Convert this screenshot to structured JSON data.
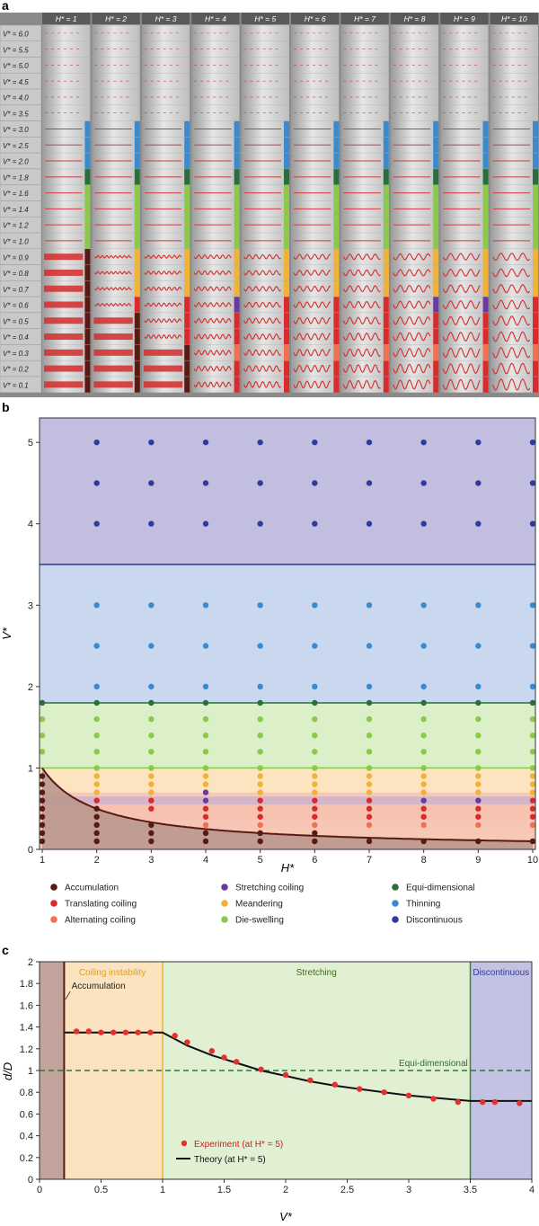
{
  "panel_labels": {
    "a": "a",
    "b": "b",
    "c": "c"
  },
  "colors": {
    "accumulation": "#5a1a14",
    "translating_coiling": "#d92b2b",
    "alternating_coiling": "#f07050",
    "stretching_coiling": "#6a3aa0",
    "meandering": "#f2b233",
    "die_swelling": "#8cc84b",
    "equi_dimensional": "#2a6e3c",
    "thinning": "#3a8ad0",
    "discontinuous": "#2f3a9a"
  },
  "panel_a": {
    "column_headers": [
      "H* = 1",
      "H* = 2",
      "H* = 3",
      "H* = 4",
      "H* = 5",
      "H* = 6",
      "H* = 7",
      "H* = 8",
      "H* = 9",
      "H* = 10"
    ],
    "row_labels": [
      "V* = 6.0",
      "V* = 5.5",
      "V* = 5.0",
      "V* = 4.5",
      "V* = 4.0",
      "V* = 3.5",
      "V* = 3.0",
      "V* = 2.5",
      "V* = 2.0",
      "V* = 1.8",
      "V* = 1.6",
      "V* = 1.4",
      "V* = 1.2",
      "V* = 1.0",
      "V* = 0.9",
      "V* = 0.8",
      "V* = 0.7",
      "V* = 0.6",
      "V* = 0.5",
      "V* = 0.4",
      "V* = 0.3",
      "V* = 0.2",
      "V* = 0.1"
    ]
  },
  "chart_data": [
    {
      "type": "scatter",
      "panel": "b",
      "xlabel": "H*",
      "ylabel": "V*",
      "xlim": [
        1,
        10
      ],
      "ylim": [
        0,
        5.3
      ],
      "x_ticks": [
        "1",
        "2",
        "3",
        "4",
        "5",
        "6",
        "7",
        "8",
        "9",
        "10"
      ],
      "y_ticks": [
        "0",
        "1",
        "2",
        "3",
        "4",
        "5"
      ],
      "regions": [
        {
          "regime": "Discontinuous",
          "from": 3.5,
          "to": 5.3
        },
        {
          "regime": "Thinning",
          "from": 1.8,
          "to": 3.5
        },
        {
          "regime": "Die-swelling",
          "from": 1.0,
          "to": 1.8
        },
        {
          "regime": "Meandering",
          "from": 0.7,
          "to": 1.0
        },
        {
          "regime": "Stretching coiling",
          "from": 0.55,
          "to": 0.65
        },
        {
          "regime": "Translating coiling",
          "from": 0.35,
          "to": 0.55
        },
        {
          "regime": "Alternating coiling",
          "from": 0.25,
          "to": 0.35
        }
      ],
      "boundary_curve": {
        "name": "Accumulation boundary",
        "formula": "V* = 1/H*"
      },
      "series": [
        {
          "name": "Discontinuous",
          "points": [
            [
              2,
              5
            ],
            [
              3,
              5
            ],
            [
              4,
              5
            ],
            [
              5,
              5
            ],
            [
              6,
              5
            ],
            [
              7,
              5
            ],
            [
              8,
              5
            ],
            [
              9,
              5
            ],
            [
              10,
              5
            ],
            [
              2,
              4.5
            ],
            [
              3,
              4.5
            ],
            [
              4,
              4.5
            ],
            [
              5,
              4.5
            ],
            [
              6,
              4.5
            ],
            [
              7,
              4.5
            ],
            [
              8,
              4.5
            ],
            [
              9,
              4.5
            ],
            [
              10,
              4.5
            ],
            [
              2,
              4
            ],
            [
              3,
              4
            ],
            [
              4,
              4
            ],
            [
              5,
              4
            ],
            [
              6,
              4
            ],
            [
              7,
              4
            ],
            [
              8,
              4
            ],
            [
              9,
              4
            ],
            [
              10,
              4
            ]
          ]
        },
        {
          "name": "Thinning",
          "points": [
            [
              2,
              3
            ],
            [
              3,
              3
            ],
            [
              4,
              3
            ],
            [
              5,
              3
            ],
            [
              6,
              3
            ],
            [
              7,
              3
            ],
            [
              8,
              3
            ],
            [
              9,
              3
            ],
            [
              10,
              3
            ],
            [
              2,
              2.5
            ],
            [
              3,
              2.5
            ],
            [
              4,
              2.5
            ],
            [
              5,
              2.5
            ],
            [
              6,
              2.5
            ],
            [
              7,
              2.5
            ],
            [
              8,
              2.5
            ],
            [
              9,
              2.5
            ],
            [
              10,
              2.5
            ],
            [
              2,
              2
            ],
            [
              3,
              2
            ],
            [
              4,
              2
            ],
            [
              5,
              2
            ],
            [
              6,
              2
            ],
            [
              7,
              2
            ],
            [
              8,
              2
            ],
            [
              9,
              2
            ],
            [
              10,
              2
            ]
          ]
        },
        {
          "name": "Equi-dimensional",
          "points": [
            [
              1,
              1.8
            ],
            [
              2,
              1.8
            ],
            [
              3,
              1.8
            ],
            [
              4,
              1.8
            ],
            [
              5,
              1.8
            ],
            [
              6,
              1.8
            ],
            [
              7,
              1.8
            ],
            [
              8,
              1.8
            ],
            [
              9,
              1.8
            ],
            [
              10,
              1.8
            ]
          ]
        },
        {
          "name": "Die-swelling",
          "points": [
            [
              1,
              1.6
            ],
            [
              2,
              1.6
            ],
            [
              3,
              1.6
            ],
            [
              4,
              1.6
            ],
            [
              5,
              1.6
            ],
            [
              6,
              1.6
            ],
            [
              7,
              1.6
            ],
            [
              8,
              1.6
            ],
            [
              9,
              1.6
            ],
            [
              10,
              1.6
            ],
            [
              1,
              1.4
            ],
            [
              2,
              1.4
            ],
            [
              3,
              1.4
            ],
            [
              4,
              1.4
            ],
            [
              5,
              1.4
            ],
            [
              6,
              1.4
            ],
            [
              7,
              1.4
            ],
            [
              8,
              1.4
            ],
            [
              9,
              1.4
            ],
            [
              10,
              1.4
            ],
            [
              1,
              1.2
            ],
            [
              2,
              1.2
            ],
            [
              3,
              1.2
            ],
            [
              4,
              1.2
            ],
            [
              5,
              1.2
            ],
            [
              6,
              1.2
            ],
            [
              7,
              1.2
            ],
            [
              8,
              1.2
            ],
            [
              9,
              1.2
            ],
            [
              10,
              1.2
            ],
            [
              2,
              1
            ],
            [
              3,
              1
            ],
            [
              4,
              1
            ],
            [
              5,
              1
            ],
            [
              6,
              1
            ],
            [
              7,
              1
            ],
            [
              8,
              1
            ],
            [
              9,
              1
            ],
            [
              10,
              1
            ]
          ]
        },
        {
          "name": "Meandering",
          "points": [
            [
              2,
              0.9
            ],
            [
              3,
              0.9
            ],
            [
              4,
              0.9
            ],
            [
              5,
              0.9
            ],
            [
              6,
              0.9
            ],
            [
              7,
              0.9
            ],
            [
              8,
              0.9
            ],
            [
              9,
              0.9
            ],
            [
              10,
              0.9
            ],
            [
              2,
              0.8
            ],
            [
              3,
              0.8
            ],
            [
              4,
              0.8
            ],
            [
              5,
              0.8
            ],
            [
              6,
              0.8
            ],
            [
              7,
              0.8
            ],
            [
              8,
              0.8
            ],
            [
              9,
              0.8
            ],
            [
              10,
              0.8
            ],
            [
              2,
              0.7
            ],
            [
              3,
              0.7
            ],
            [
              5,
              0.7
            ],
            [
              6,
              0.7
            ],
            [
              7,
              0.7
            ],
            [
              8,
              0.7
            ],
            [
              9,
              0.7
            ],
            [
              10,
              0.7
            ]
          ]
        },
        {
          "name": "Stretching coiling",
          "points": [
            [
              4,
              0.7
            ],
            [
              4,
              0.6
            ],
            [
              8,
              0.6
            ],
            [
              9,
              0.6
            ]
          ]
        },
        {
          "name": "Translating coiling",
          "points": [
            [
              2,
              0.6
            ],
            [
              3,
              0.6
            ],
            [
              5,
              0.6
            ],
            [
              6,
              0.6
            ],
            [
              7,
              0.6
            ],
            [
              10,
              0.6
            ],
            [
              3,
              0.5
            ],
            [
              4,
              0.5
            ],
            [
              5,
              0.5
            ],
            [
              6,
              0.5
            ],
            [
              7,
              0.5
            ],
            [
              8,
              0.5
            ],
            [
              9,
              0.5
            ],
            [
              10,
              0.5
            ],
            [
              4,
              0.4
            ],
            [
              5,
              0.4
            ],
            [
              6,
              0.4
            ],
            [
              7,
              0.4
            ],
            [
              8,
              0.4
            ],
            [
              9,
              0.4
            ],
            [
              10,
              0.4
            ]
          ]
        },
        {
          "name": "Alternating coiling",
          "points": [
            [
              4,
              0.3
            ],
            [
              5,
              0.3
            ],
            [
              6,
              0.3
            ],
            [
              7,
              0.3
            ],
            [
              8,
              0.3
            ],
            [
              9,
              0.3
            ],
            [
              10,
              0.3
            ]
          ]
        },
        {
          "name": "Accumulation",
          "points": [
            [
              1,
              0.9
            ],
            [
              1,
              0.8
            ],
            [
              1,
              0.7
            ],
            [
              1,
              0.6
            ],
            [
              1,
              0.5
            ],
            [
              1,
              0.4
            ],
            [
              1,
              0.3
            ],
            [
              1,
              0.2
            ],
            [
              1,
              0.1
            ],
            [
              2,
              0.5
            ],
            [
              2,
              0.4
            ],
            [
              2,
              0.3
            ],
            [
              2,
              0.2
            ],
            [
              2,
              0.1
            ],
            [
              3,
              0.3
            ],
            [
              3,
              0.2
            ],
            [
              3,
              0.1
            ],
            [
              4,
              0.2
            ],
            [
              4,
              0.1
            ],
            [
              5,
              0.2
            ],
            [
              5,
              0.1
            ],
            [
              6,
              0.2
            ],
            [
              6,
              0.1
            ],
            [
              7,
              0.1
            ],
            [
              8,
              0.1
            ],
            [
              9,
              0.1
            ],
            [
              10,
              0.1
            ]
          ]
        }
      ],
      "legend": [
        "Accumulation",
        "Stretching coiling",
        "Equi-dimensional",
        "Translating coiling",
        "Meandering",
        "Thinning",
        "Alternating coiling",
        "Die-swelling",
        "Discontinuous"
      ]
    },
    {
      "type": "line",
      "panel": "c",
      "xlabel": "V*",
      "ylabel": "d/D",
      "xlim": [
        0,
        4
      ],
      "ylim": [
        0,
        2
      ],
      "x_ticks": [
        "0",
        "0.5",
        "1",
        "1.5",
        "2",
        "2.5",
        "3",
        "3.5",
        "4"
      ],
      "y_ticks": [
        "0",
        "0.2",
        "0.4",
        "0.6",
        "0.8",
        "1",
        "1.2",
        "1.4",
        "1.6",
        "1.8",
        "2"
      ],
      "regions": [
        {
          "label": "Accumulation",
          "from": 0,
          "to": 0.2
        },
        {
          "label": "Coiling instability",
          "from": 0.2,
          "to": 1.0
        },
        {
          "label": "Stretching",
          "from": 1.0,
          "to": 3.5
        },
        {
          "label": "Discontinuous",
          "from": 3.5,
          "to": 4.0
        }
      ],
      "reference_line": {
        "label": "Equi-dimensional",
        "y": 1.0
      },
      "series": [
        {
          "name": "Experiment (at H* = 5)",
          "x": [
            0.3,
            0.4,
            0.5,
            0.6,
            0.7,
            0.8,
            0.9,
            1.1,
            1.2,
            1.4,
            1.5,
            1.6,
            1.8,
            2.0,
            2.2,
            2.4,
            2.6,
            2.8,
            3.0,
            3.2,
            3.4,
            3.6,
            3.7,
            3.9
          ],
          "y": [
            1.36,
            1.36,
            1.35,
            1.35,
            1.35,
            1.35,
            1.35,
            1.32,
            1.26,
            1.18,
            1.12,
            1.08,
            1.01,
            0.96,
            0.91,
            0.87,
            0.83,
            0.8,
            0.77,
            0.74,
            0.71,
            0.71,
            0.71,
            0.7
          ]
        },
        {
          "name": "Theory (at H* = 5)",
          "x": [
            0.2,
            1.0,
            1.2,
            1.4,
            1.6,
            1.8,
            2.0,
            2.2,
            2.4,
            2.6,
            2.8,
            3.0,
            3.2,
            3.5,
            4.0
          ],
          "y": [
            1.35,
            1.35,
            1.23,
            1.14,
            1.07,
            1.0,
            0.95,
            0.9,
            0.86,
            0.83,
            0.8,
            0.77,
            0.75,
            0.72,
            0.72
          ]
        }
      ],
      "legend_position": "lower-left"
    }
  ]
}
